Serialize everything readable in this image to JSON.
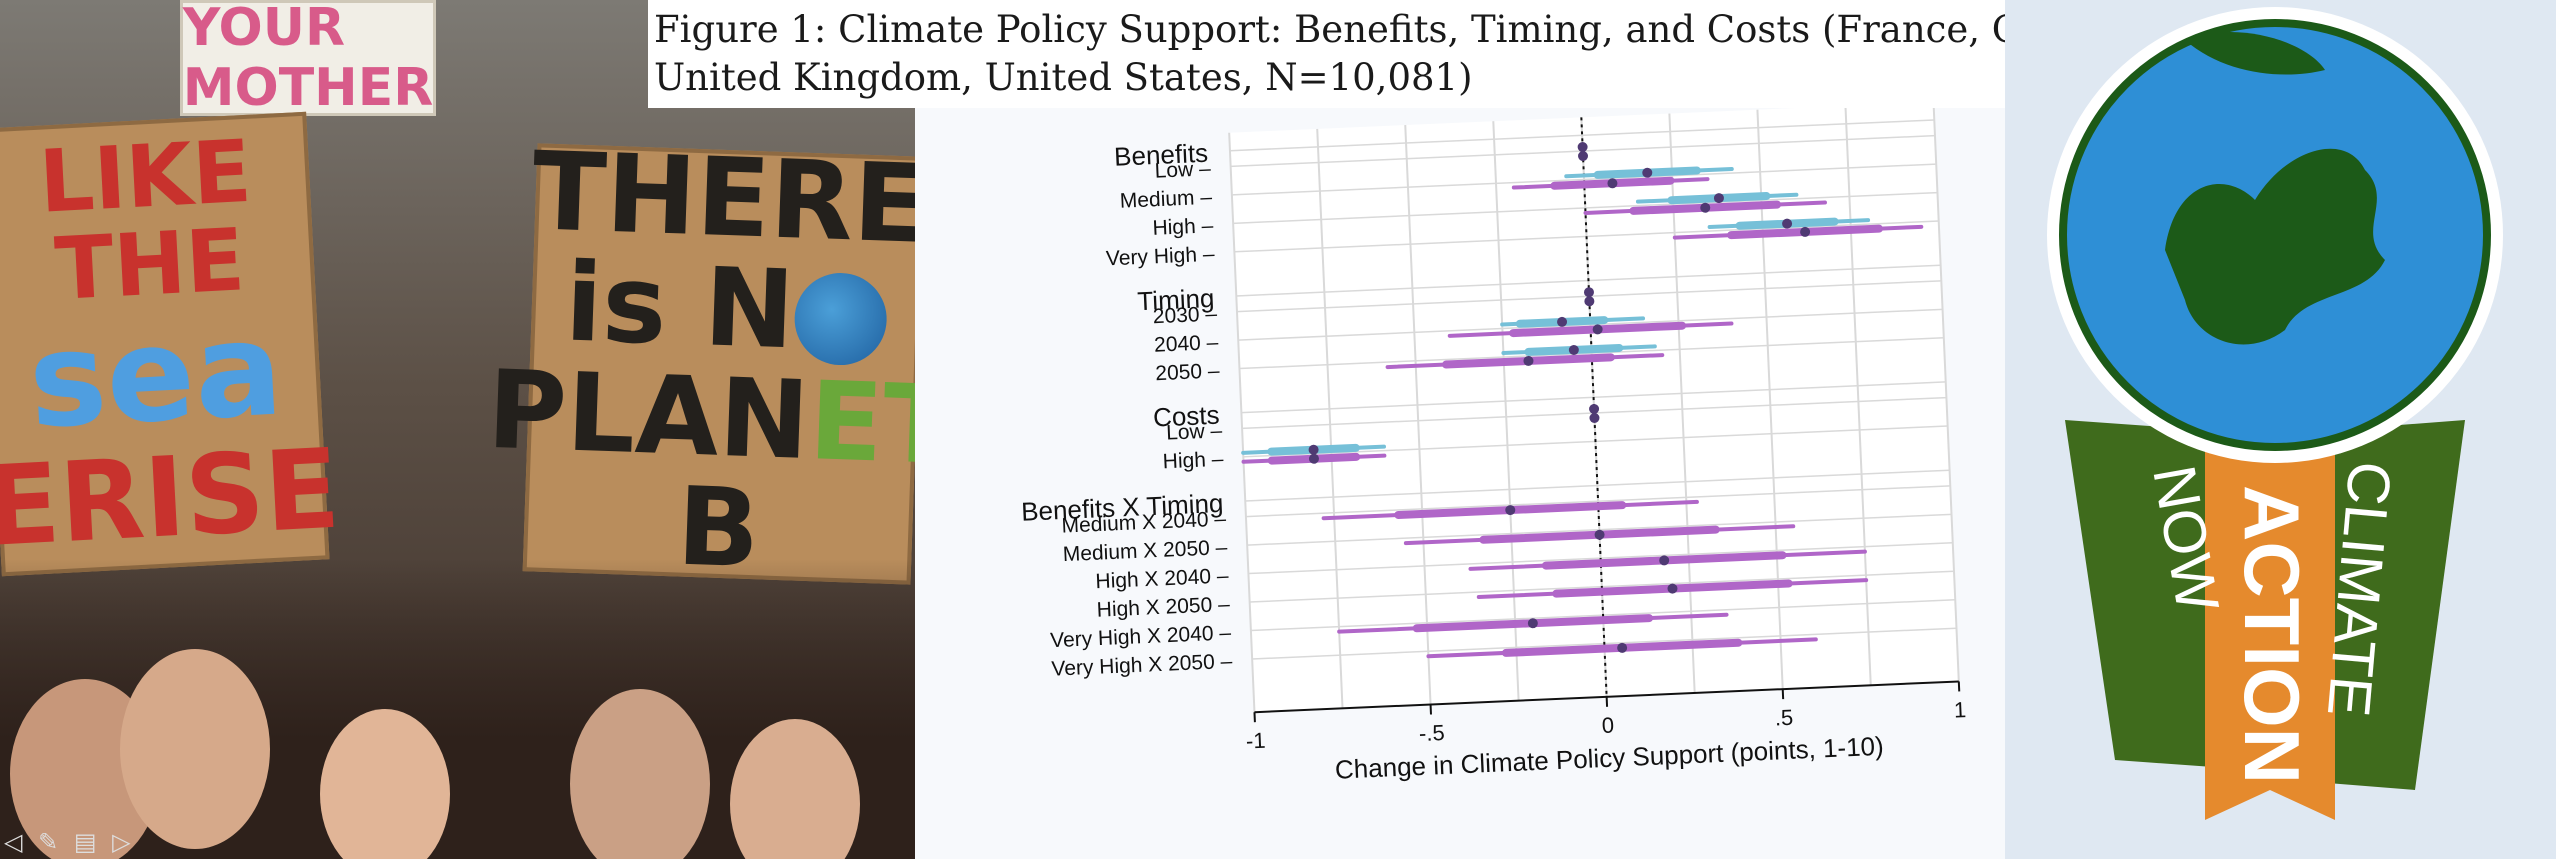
{
  "figure": {
    "caption": "Figure 1: Climate Policy Support: Benefits, Timing, and Costs (France, Germany, United Kingdom, United States, N=10,081)"
  },
  "protest_signs": {
    "top_sign": "YOUR MOTHER",
    "sea_line1": "LIKE THE",
    "sea_line2": "sea",
    "sea_line3": "ERISE",
    "planb_line1": "THERE",
    "planb_line2a": "is N",
    "planb_line3a": "PLAN",
    "planb_line3b": "ET",
    "planb_line3c": " B"
  },
  "badge": {
    "left": "NOW",
    "center": "ACTION",
    "right": "CLIMATE"
  },
  "colors": {
    "blue": "#76c0d8",
    "purple": "#b066c8",
    "grid": "#d9d9d9",
    "badge_green": "#3f6b1c",
    "badge_orange": "#e58a2d",
    "globe_blue": "#2e8fd6",
    "globe_land": "#1c5a18"
  },
  "nav_icons": "◁ ✎ ▤ ▷",
  "chart_data": {
    "type": "coefficient-plot",
    "title": "",
    "xlabel": "Change in Climate Policy Support (points, 1-10)",
    "ylabel": "",
    "xlim": [
      -1,
      1
    ],
    "xticks": [
      "-1",
      "-.5",
      "0",
      ".5",
      "1"
    ],
    "reference_line": 0,
    "groups": [
      {
        "name": "Benefits",
        "levels": [
          {
            "label": "Low",
            "blue": {
              "est": 0,
              "lo": 0,
              "hi": 0
            },
            "purple": {
              "est": 0,
              "lo": 0,
              "hi": 0
            }
          },
          {
            "label": "Medium",
            "blue": {
              "est": 0.18,
              "lo": -0.05,
              "hi": 0.42
            },
            "purple": {
              "est": 0.08,
              "lo": -0.2,
              "hi": 0.35
            }
          },
          {
            "label": "High",
            "blue": {
              "est": 0.38,
              "lo": 0.15,
              "hi": 0.6
            },
            "purple": {
              "est": 0.34,
              "lo": 0.0,
              "hi": 0.68
            }
          },
          {
            "label": "Very High",
            "blue": {
              "est": 0.57,
              "lo": 0.35,
              "hi": 0.8
            },
            "purple": {
              "est": 0.62,
              "lo": 0.25,
              "hi": 0.95
            }
          }
        ]
      },
      {
        "name": "Timing",
        "levels": [
          {
            "label": "2030",
            "blue": {
              "est": 0,
              "lo": 0,
              "hi": 0
            },
            "purple": {
              "est": 0,
              "lo": 0,
              "hi": 0
            }
          },
          {
            "label": "2040",
            "blue": {
              "est": -0.08,
              "lo": -0.25,
              "hi": 0.15
            },
            "purple": {
              "est": 0.02,
              "lo": -0.4,
              "hi": 0.4
            }
          },
          {
            "label": "2050",
            "blue": {
              "est": -0.05,
              "lo": -0.25,
              "hi": 0.18
            },
            "purple": {
              "est": -0.18,
              "lo": -0.58,
              "hi": 0.2
            }
          }
        ]
      },
      {
        "name": "Costs",
        "levels": [
          {
            "label": "Low",
            "blue": {
              "est": 0,
              "lo": 0,
              "hi": 0
            },
            "purple": {
              "est": 0,
              "lo": 0,
              "hi": 0
            }
          },
          {
            "label": "High",
            "blue": {
              "est": -0.8,
              "lo": -1.0,
              "hi": -0.6
            },
            "purple": {
              "est": -0.8,
              "lo": -1.0,
              "hi": -0.6
            }
          }
        ]
      },
      {
        "name": "Benefits X Timing",
        "levels": [
          {
            "label": "Medium X 2040",
            "purple": {
              "est": -0.25,
              "lo": -0.78,
              "hi": 0.28
            }
          },
          {
            "label": "Medium X 2050",
            "purple": {
              "est": 0.0,
              "lo": -0.55,
              "hi": 0.55
            }
          },
          {
            "label": "High X 2040",
            "purple": {
              "est": 0.18,
              "lo": -0.37,
              "hi": 0.75
            }
          },
          {
            "label": "High X 2050",
            "purple": {
              "est": 0.2,
              "lo": -0.35,
              "hi": 0.75
            }
          },
          {
            "label": "Very High X 2040",
            "purple": {
              "est": -0.2,
              "lo": -0.75,
              "hi": 0.35
            }
          },
          {
            "label": "Very High X 2050",
            "purple": {
              "est": 0.05,
              "lo": -0.5,
              "hi": 0.6
            }
          }
        ]
      }
    ]
  }
}
